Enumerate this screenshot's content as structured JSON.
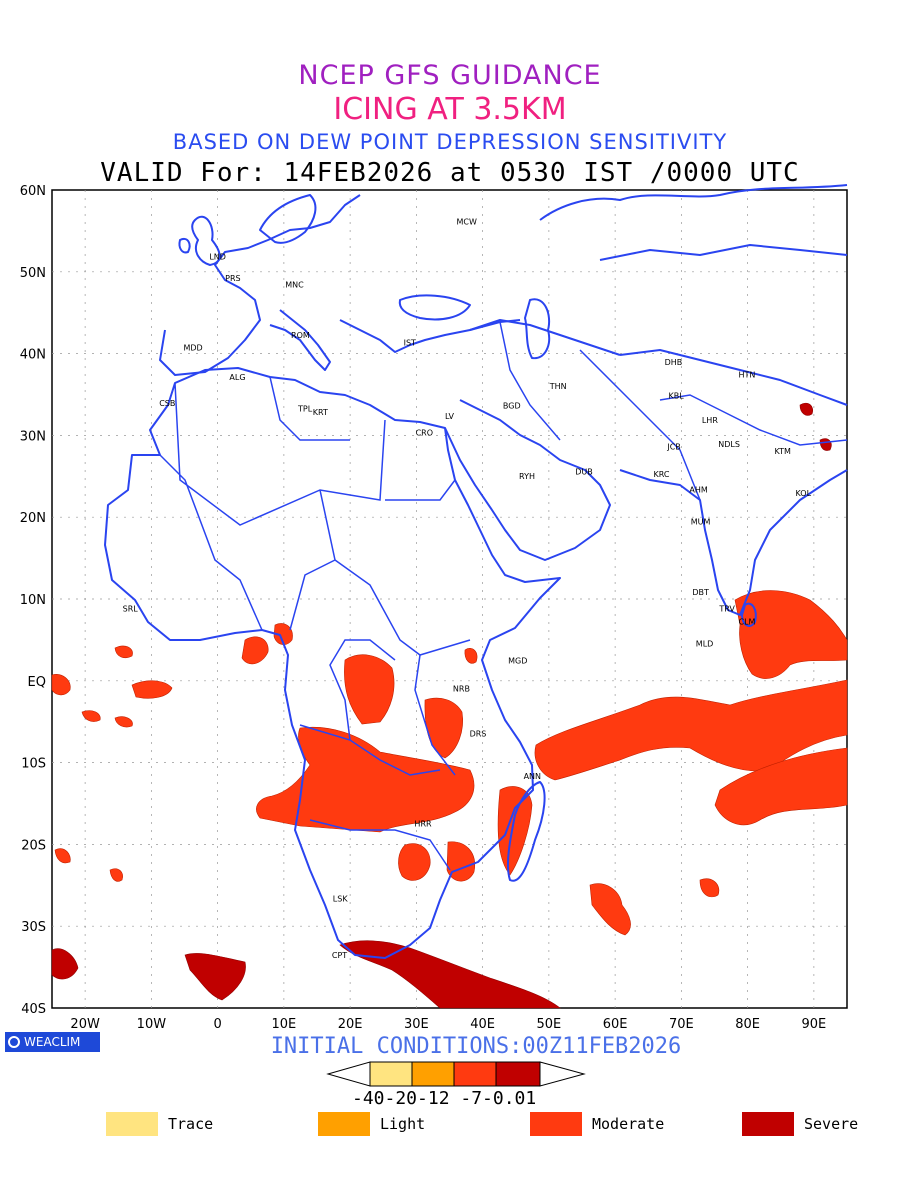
{
  "title": {
    "line1": "NCEP GFS GUIDANCE",
    "line2": "ICING AT 3.5KM",
    "line3": "BASED ON DEW POINT DEPRESSION SENSITIVITY",
    "line4": "VALID For: 14FEB2026 at 0530 IST /0000 UTC"
  },
  "map": {
    "lat_labels": [
      "60N",
      "50N",
      "40N",
      "30N",
      "20N",
      "10N",
      "EQ",
      "10S",
      "20S",
      "30S",
      "40S"
    ],
    "lon_labels": [
      "20W",
      "10W",
      "0",
      "10E",
      "20E",
      "30E",
      "40E",
      "50E",
      "60E",
      "70E",
      "80E",
      "90E"
    ],
    "cities": [
      "MCW",
      "LND",
      "PRS",
      "MNC",
      "ROM",
      "MDD",
      "IST",
      "ALG",
      "CSB",
      "TPL",
      "KRT",
      "CRO",
      "LV",
      "BGD",
      "THN",
      "RYH",
      "DUB",
      "DHB",
      "HTN",
      "KBL",
      "LHR",
      "JCB",
      "NDLS",
      "KRC",
      "AHM",
      "KTM",
      "KOL",
      "MUM",
      "DBT",
      "TRV",
      "CLM",
      "MLD",
      "MGD",
      "NRB",
      "DRS",
      "ANN",
      "HRR",
      "SRL",
      "LSK",
      "CPT"
    ],
    "coast_color": "#2a44f0",
    "icing_colors": {
      "moderate": "#ff3a10",
      "severe": "#c00000"
    }
  },
  "brand": "WEACLIM",
  "initial_conditions": "INITIAL CONDITIONS:00Z11FEB2026",
  "colorbar": {
    "ticks_text": "-40-20-12 -7-0.01",
    "colors": [
      "#ffe480",
      "#ffa000",
      "#ff3a10",
      "#c00000"
    ]
  },
  "legend": [
    {
      "label": "Trace",
      "color": "#ffe480"
    },
    {
      "label": "Light",
      "color": "#ffa000"
    },
    {
      "label": "Moderate",
      "color": "#ff3a10"
    },
    {
      "label": "Severe",
      "color": "#c00000"
    }
  ]
}
